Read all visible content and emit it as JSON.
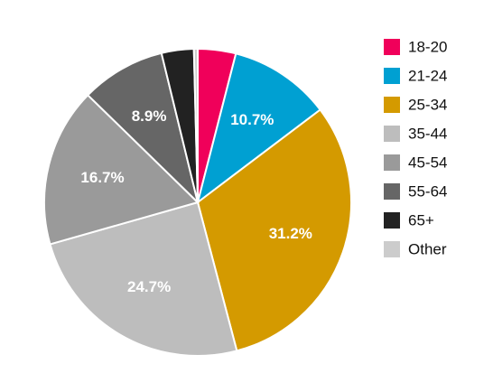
{
  "chart_data": {
    "type": "pie",
    "categories": [
      "18-20",
      "21-24",
      "25-34",
      "35-44",
      "45-54",
      "55-64",
      "65+",
      "Other"
    ],
    "values": [
      4.0,
      10.7,
      31.2,
      24.7,
      16.7,
      8.9,
      3.4,
      0.4
    ],
    "value_labels": [
      null,
      "10.7%",
      "31.2%",
      "24.7%",
      "16.7%",
      "8.9%",
      null,
      null
    ],
    "colors": [
      "#f0005a",
      "#00a0d2",
      "#d49a00",
      "#bdbdbd",
      "#9a9a9a",
      "#666666",
      "#222222",
      "#cccccc"
    ],
    "legend": "right"
  }
}
